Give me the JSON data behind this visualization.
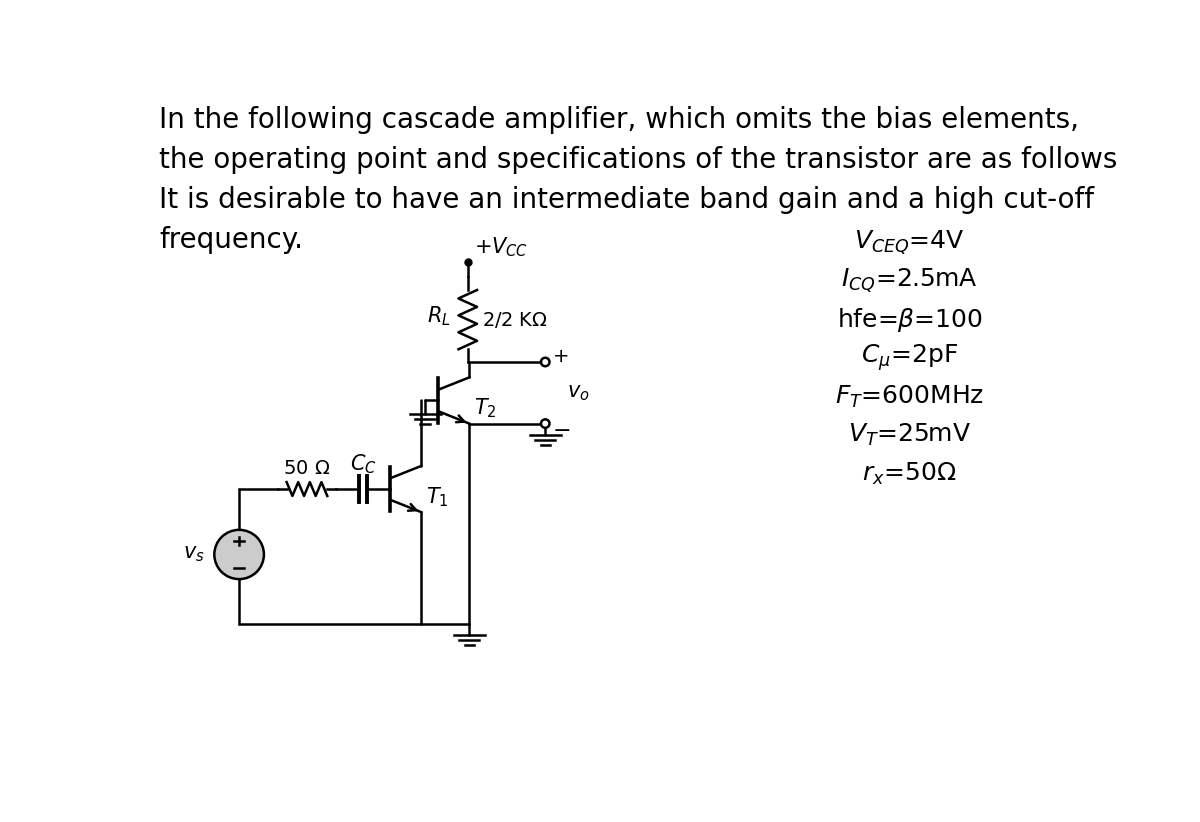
{
  "title_lines": [
    "In the following cascade amplifier, which omits the bias elements,",
    "the operating point and specifications of the transistor are as follows",
    "It is desirable to have an intermediate band gain and a high cut-off",
    "frequency."
  ],
  "spec_items": [
    "V_{CEQ}=4V",
    "I_{CQ}=2.5mA",
    "hfe=\\beta=100",
    "C_{\\mu}=2pF",
    "F_T=600MHz",
    "V_T=25mV",
    "r_x=50\\Omega"
  ],
  "bg_color": "#ffffff",
  "text_color": "#000000",
  "circuit_color": "#000000",
  "title_fontsize": 20,
  "spec_fontsize": 18,
  "lw": 1.8
}
